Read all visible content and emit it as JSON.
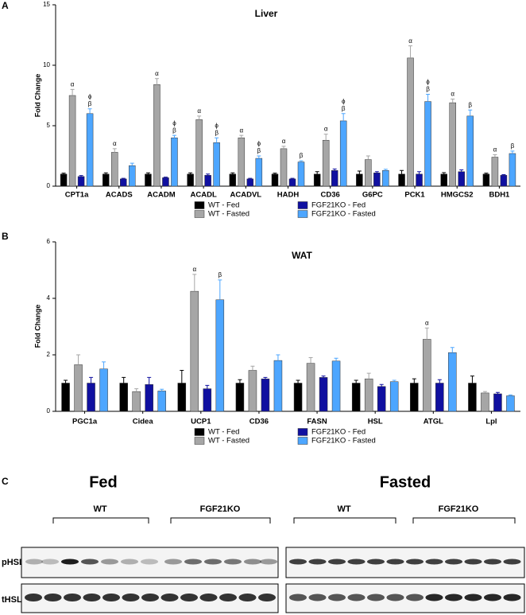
{
  "chart_data": [
    {
      "type": "bar",
      "panel": "A",
      "title": "Liver",
      "y_label": "Fold  Change",
      "categories": [
        "CPT1a",
        "ACADS",
        "ACADM",
        "ACADL",
        "ACADVL",
        "HADH",
        "CD36",
        "G6PC",
        "PCK1",
        "HMGCS2",
        "BDH1"
      ],
      "ylim": [
        0,
        15
      ],
      "yticks": [
        0,
        5,
        10,
        15
      ],
      "series": [
        {
          "name": "WT - Fed",
          "color": "#000000",
          "values": [
            1,
            1,
            1,
            1,
            1,
            1,
            1,
            1,
            1,
            1,
            1
          ],
          "errors": [
            0.08,
            0.1,
            0.1,
            0.1,
            0.1,
            0.08,
            0.2,
            0.25,
            0.3,
            0.12,
            0.08
          ],
          "annotations": [
            null,
            null,
            null,
            null,
            null,
            null,
            null,
            null,
            null,
            null,
            null
          ]
        },
        {
          "name": "WT - Fasted",
          "color": "#a6a6a6",
          "values": [
            7.5,
            2.8,
            8.4,
            5.5,
            4.0,
            3.1,
            3.8,
            2.2,
            10.6,
            6.9,
            2.4
          ],
          "errors": [
            0.5,
            0.3,
            0.5,
            0.3,
            0.2,
            0.2,
            0.5,
            0.3,
            1.0,
            0.3,
            0.2
          ],
          "annotations": [
            [
              "α"
            ],
            [
              "α"
            ],
            [
              "α"
            ],
            [
              "α"
            ],
            [
              "α"
            ],
            [
              "α"
            ],
            [
              "α"
            ],
            null,
            [
              "α"
            ],
            [
              "α"
            ],
            [
              "α"
            ]
          ]
        },
        {
          "name": "FGF21KO - Fed",
          "color": "#1010a0",
          "values": [
            0.8,
            0.6,
            0.7,
            0.9,
            0.6,
            0.6,
            1.3,
            1.1,
            1.0,
            1.2,
            0.9
          ],
          "errors": [
            0.08,
            0.05,
            0.05,
            0.1,
            0.05,
            0.05,
            0.12,
            0.1,
            0.2,
            0.15,
            0.05
          ],
          "annotations": [
            null,
            null,
            null,
            null,
            null,
            null,
            null,
            null,
            null,
            null,
            null
          ]
        },
        {
          "name": "FGF21KO - Fasted",
          "color": "#4da6ff",
          "values": [
            6.0,
            1.7,
            4.0,
            3.6,
            2.3,
            2.0,
            5.4,
            1.3,
            7.0,
            5.8,
            2.7
          ],
          "errors": [
            0.4,
            0.2,
            0.2,
            0.4,
            0.2,
            0.1,
            0.6,
            0.1,
            0.6,
            0.5,
            0.2
          ],
          "annotations": [
            [
              "ϕ",
              "β"
            ],
            null,
            [
              "ϕ",
              "β"
            ],
            [
              "ϕ",
              "β"
            ],
            [
              "ϕ",
              "β"
            ],
            [
              "β"
            ],
            [
              "ϕ",
              "β"
            ],
            null,
            [
              "ϕ",
              "β"
            ],
            [
              "β"
            ],
            [
              "β"
            ]
          ]
        }
      ]
    },
    {
      "type": "bar",
      "panel": "B",
      "title": "WAT",
      "y_label": "Fold  Change",
      "categories": [
        "PGC1a",
        "Cidea",
        "UCP1",
        "CD36",
        "FASN",
        "HSL",
        "ATGL",
        "Lpl"
      ],
      "ylim": [
        0,
        6
      ],
      "yticks": [
        0,
        2,
        4,
        6
      ],
      "series": [
        {
          "name": "WT - Fed",
          "color": "#000000",
          "values": [
            1,
            1,
            1,
            1,
            1,
            1,
            1,
            1
          ],
          "errors": [
            0.1,
            0.2,
            0.45,
            0.12,
            0.1,
            0.1,
            0.15,
            0.25
          ],
          "annotations": [
            null,
            null,
            null,
            null,
            null,
            null,
            null,
            null
          ]
        },
        {
          "name": "WT - Fasted",
          "color": "#a6a6a6",
          "values": [
            1.65,
            0.7,
            4.25,
            1.45,
            1.7,
            1.15,
            2.55,
            0.65
          ],
          "errors": [
            0.35,
            0.1,
            0.6,
            0.15,
            0.2,
            0.2,
            0.4,
            0.05
          ],
          "annotations": [
            null,
            null,
            [
              "α"
            ],
            null,
            null,
            null,
            [
              "α"
            ],
            null
          ]
        },
        {
          "name": "FGF21KO - Fed",
          "color": "#1010a0",
          "values": [
            1.0,
            0.95,
            0.8,
            1.15,
            1.2,
            0.88,
            1.0,
            0.62
          ],
          "errors": [
            0.2,
            0.25,
            0.12,
            0.05,
            0.05,
            0.07,
            0.12,
            0.05
          ],
          "annotations": [
            null,
            null,
            null,
            null,
            null,
            null,
            null,
            null
          ]
        },
        {
          "name": "FGF21KO - Fasted",
          "color": "#4da6ff",
          "values": [
            1.5,
            0.72,
            3.95,
            1.8,
            1.78,
            1.05,
            2.08,
            0.55
          ],
          "errors": [
            0.25,
            0.06,
            0.7,
            0.2,
            0.1,
            0.05,
            0.18,
            0.03
          ],
          "annotations": [
            null,
            null,
            [
              "β"
            ],
            null,
            null,
            null,
            null,
            null
          ]
        }
      ]
    }
  ],
  "blot": {
    "panel": "C",
    "conditions": [
      "Fed",
      "Fasted"
    ],
    "groups": [
      "WT",
      "FGF21KO",
      "WT",
      "FGF21KO"
    ],
    "rows": [
      "pHSL",
      "tHSL"
    ]
  }
}
